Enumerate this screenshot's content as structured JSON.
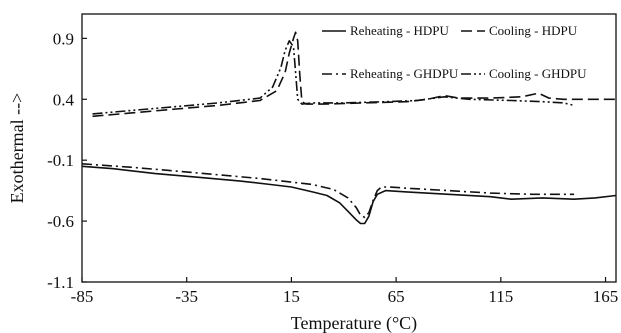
{
  "chart_data": {
    "type": "line",
    "title": "",
    "xlabel": "Temperature (°C)",
    "ylabel": "Exothermal  -->",
    "xlim": [
      -85,
      170
    ],
    "ylim": [
      -1.1,
      1.1
    ],
    "x_ticks": [
      -85,
      -35,
      15,
      65,
      115,
      165
    ],
    "y_ticks": [
      0.9,
      0.4,
      -0.1,
      -0.6,
      -1.1
    ],
    "x_tick_labels": [
      "-85",
      "-35",
      "15",
      "65",
      "115",
      "165"
    ],
    "y_tick_labels": [
      "0.9",
      "0.4",
      "-0.1",
      "-0.6",
      "-1.1"
    ],
    "grid": false,
    "legend_position": "top-right",
    "series": [
      {
        "name": "Reheating - HDPU",
        "style": "solid",
        "color": "#111111",
        "x": [
          -85,
          -70,
          -50,
          -30,
          -10,
          5,
          15,
          25,
          32,
          38,
          42,
          46,
          48,
          50,
          52,
          54,
          56,
          60,
          70,
          90,
          110,
          120,
          135,
          150,
          160,
          170
        ],
        "y": [
          -0.15,
          -0.17,
          -0.21,
          -0.24,
          -0.27,
          -0.3,
          -0.32,
          -0.36,
          -0.39,
          -0.45,
          -0.52,
          -0.59,
          -0.62,
          -0.62,
          -0.56,
          -0.44,
          -0.38,
          -0.35,
          -0.36,
          -0.38,
          -0.4,
          -0.42,
          -0.41,
          -0.42,
          -0.41,
          -0.39
        ]
      },
      {
        "name": "Cooling - HDPU",
        "style": "dashed",
        "color": "#111111",
        "x": [
          -80,
          -60,
          -40,
          -20,
          0,
          8,
          12,
          14,
          16,
          17,
          18,
          19,
          20,
          22,
          30,
          50,
          70,
          80,
          88,
          95,
          110,
          125,
          133,
          138,
          145,
          170
        ],
        "y": [
          0.26,
          0.29,
          0.32,
          0.35,
          0.39,
          0.47,
          0.62,
          0.78,
          0.9,
          0.95,
          0.88,
          0.6,
          0.38,
          0.36,
          0.36,
          0.37,
          0.38,
          0.4,
          0.43,
          0.41,
          0.41,
          0.42,
          0.45,
          0.41,
          0.4,
          0.4
        ]
      },
      {
        "name": "Reheating - GHDPU",
        "style": "dashdot",
        "color": "#111111",
        "x": [
          -85,
          -60,
          -40,
          -20,
          0,
          15,
          25,
          35,
          42,
          46,
          48,
          50,
          52,
          54,
          56,
          58,
          62,
          70,
          90,
          110,
          130,
          150
        ],
        "y": [
          -0.13,
          -0.16,
          -0.19,
          -0.22,
          -0.25,
          -0.28,
          -0.3,
          -0.34,
          -0.41,
          -0.49,
          -0.55,
          -0.57,
          -0.53,
          -0.43,
          -0.35,
          -0.32,
          -0.32,
          -0.33,
          -0.35,
          -0.37,
          -0.38,
          -0.38
        ]
      },
      {
        "name": "Cooling - GHDPU",
        "style": "dashdotdot",
        "color": "#111111",
        "x": [
          -80,
          -60,
          -40,
          -20,
          0,
          6,
          10,
          12,
          14,
          16,
          17,
          18,
          20,
          25,
          40,
          60,
          75,
          88,
          100,
          120,
          135,
          145,
          150
        ],
        "y": [
          0.28,
          0.31,
          0.34,
          0.37,
          0.41,
          0.5,
          0.66,
          0.8,
          0.88,
          0.83,
          0.62,
          0.4,
          0.36,
          0.37,
          0.37,
          0.38,
          0.39,
          0.42,
          0.4,
          0.39,
          0.38,
          0.37,
          0.35
        ]
      }
    ]
  }
}
